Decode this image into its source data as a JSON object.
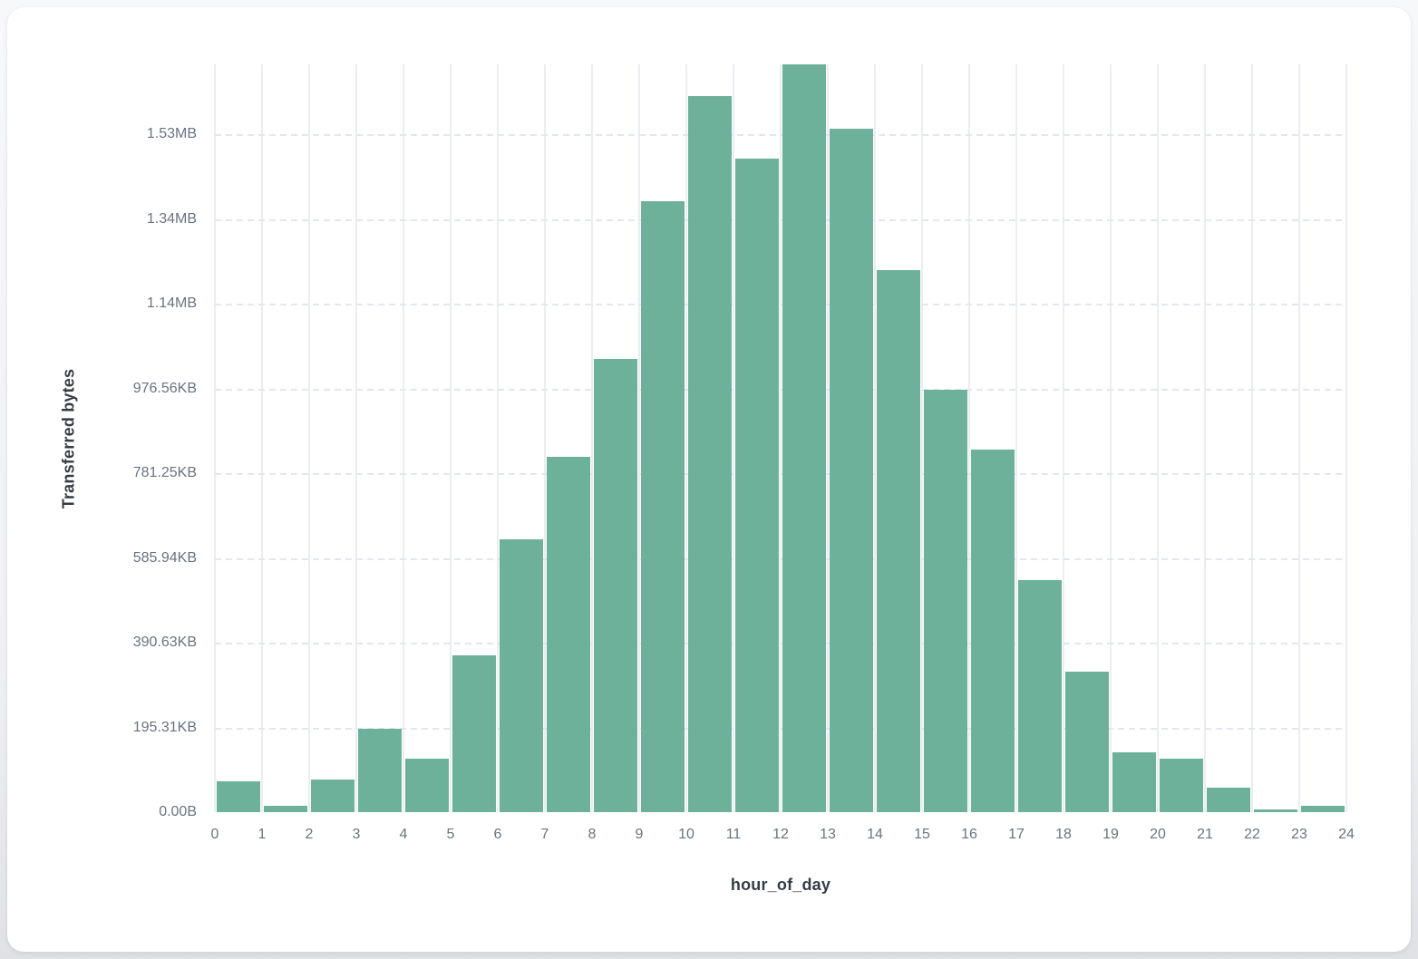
{
  "chart_data": {
    "type": "bar",
    "title": "",
    "xlabel": "hour_of_day",
    "ylabel": "Transferred bytes",
    "x_range": [
      0,
      24
    ],
    "bin_width_hours": 1,
    "x": [
      0,
      1,
      2,
      3,
      4,
      5,
      6,
      7,
      8,
      9,
      10,
      11,
      12,
      13,
      14,
      15,
      16,
      17,
      18,
      19,
      20,
      21,
      22,
      23
    ],
    "values": [
      72800,
      15000,
      77000,
      197000,
      126300,
      370200,
      644100,
      838900,
      1070000,
      1442400,
      1690600,
      1543000,
      1765500,
      1613600,
      1279700,
      997200,
      856000,
      547800,
      331700,
      141200,
      126300,
      57800,
      6400,
      15000
    ],
    "values_unit": "bytes (estimated from plot)",
    "x_tick_labels": [
      "0",
      "1",
      "2",
      "3",
      "4",
      "5",
      "6",
      "7",
      "8",
      "9",
      "10",
      "11",
      "12",
      "13",
      "14",
      "15",
      "16",
      "17",
      "18",
      "19",
      "20",
      "21",
      "22",
      "23",
      "24"
    ],
    "y_ticks": [
      {
        "label": "0.00B",
        "bytes": 0
      },
      {
        "label": "195.31KB",
        "bytes": 200000
      },
      {
        "label": "390.63KB",
        "bytes": 400000
      },
      {
        "label": "585.94KB",
        "bytes": 600000
      },
      {
        "label": "781.25KB",
        "bytes": 800000
      },
      {
        "label": "976.56KB",
        "bytes": 1000000
      },
      {
        "label": "1.14MB",
        "bytes": 1200000
      },
      {
        "label": "1.34MB",
        "bytes": 1400000
      },
      {
        "label": "1.53MB",
        "bytes": 1600000
      }
    ],
    "y_max_bytes": 1765500,
    "bar_color": "#6DB19A",
    "grid": {
      "vertical": "solid",
      "horizontal": "dashed",
      "zero_line": false
    },
    "legend_position": "none"
  },
  "colors": {
    "card_background": "#ffffff",
    "page_background": "#e7e9ec",
    "grid_vertical": "#eaedf1",
    "grid_horizontal_dash": "#e3e7ed",
    "tick_label": "#6b7280",
    "axis_title": "#363b44",
    "bar": "#6DB19A"
  }
}
